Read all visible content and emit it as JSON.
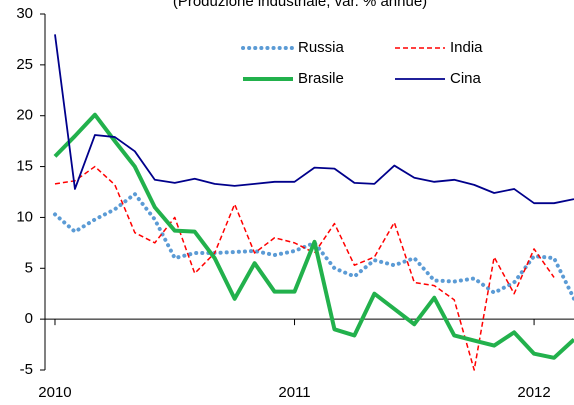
{
  "chart_data": {
    "type": "line",
    "title": "(Produzione industriale, var. % annue)",
    "x": [
      0,
      1,
      2,
      3,
      4,
      5,
      6,
      7,
      8,
      9,
      10,
      11,
      12,
      13,
      14,
      15,
      16,
      17,
      18,
      19,
      20,
      21,
      22,
      23,
      24,
      25,
      26
    ],
    "xlim": [
      -0.5,
      26
    ],
    "xticks": [
      {
        "value": 0,
        "label": "2010"
      },
      {
        "value": 12,
        "label": "2011"
      },
      {
        "value": 24,
        "label": "2012"
      }
    ],
    "ylim": [
      -5,
      30
    ],
    "yticks": [
      -5,
      0,
      5,
      10,
      15,
      20,
      25,
      30
    ],
    "series": [
      {
        "name": "Russia",
        "color": "#5b9bd5",
        "style": "dotted",
        "values": [
          10.3,
          8.6,
          9.8,
          10.8,
          12.3,
          9.8,
          6,
          6.5,
          6.5,
          6.6,
          6.7,
          6.3,
          6.7,
          7.5,
          5,
          4.2,
          5.8,
          5.3,
          6,
          3.8,
          3.7,
          4,
          2.6,
          3.6,
          6.2,
          6,
          2
        ]
      },
      {
        "name": "India",
        "color": "#ff0000",
        "style": "dashed",
        "values": [
          13.3,
          13.6,
          15,
          13.2,
          8.5,
          7.5,
          10,
          4.5,
          6.5,
          11.3,
          6.5,
          8,
          7.5,
          6.5,
          9.4,
          5.3,
          6.1,
          9.5,
          3.6,
          3.3,
          1.9,
          -5,
          6.1,
          2.5,
          6.9,
          4.1,
          null
        ]
      },
      {
        "name": "Brasile",
        "color": "#22b14c",
        "style": "thick",
        "values": [
          16,
          18,
          20.1,
          17.5,
          15,
          11,
          8.7,
          8.6,
          6,
          2,
          5.5,
          2.7,
          2.7,
          7.6,
          -1,
          -1.6,
          2.5,
          1,
          -0.5,
          2.1,
          -1.6,
          -2.1,
          -2.6,
          -1.3,
          -3.4,
          -3.8,
          -2
        ]
      },
      {
        "name": "Cina",
        "color": "#00008b",
        "style": "solid",
        "values": [
          28,
          12.8,
          18.1,
          17.9,
          16.5,
          13.7,
          13.4,
          13.8,
          13.3,
          13.1,
          13.3,
          13.5,
          13.5,
          14.9,
          14.8,
          13.4,
          13.3,
          15.1,
          13.9,
          13.5,
          13.7,
          13.2,
          12.4,
          12.8,
          11.4,
          11.4,
          11.8
        ]
      }
    ]
  }
}
